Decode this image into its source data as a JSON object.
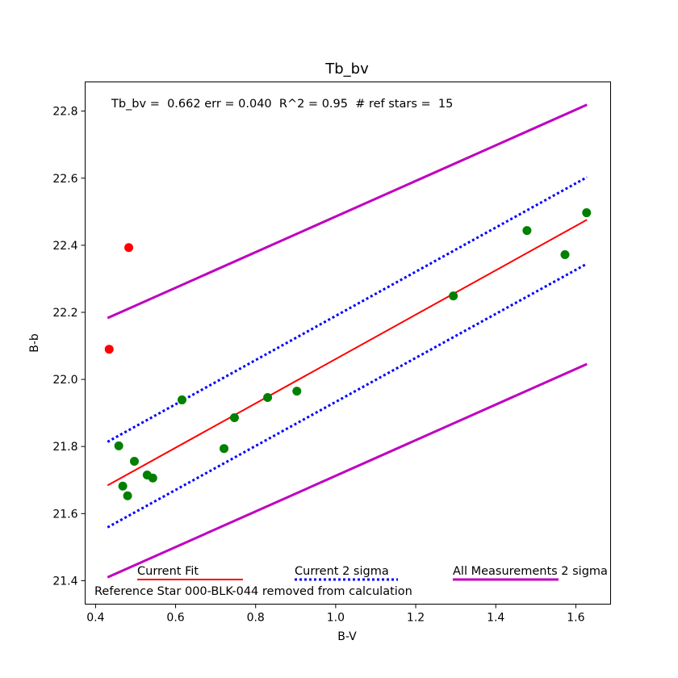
{
  "chart_data": {
    "type": "scatter",
    "title": "Tb_bv",
    "xlabel": "B-V",
    "ylabel": "B-b",
    "xlim": [
      0.374,
      1.687
    ],
    "ylim": [
      21.33,
      22.887
    ],
    "xticks": [
      0.4,
      0.6,
      0.8,
      1.0,
      1.2,
      1.4,
      1.6
    ],
    "xtick_labels": [
      "0.4",
      "0.6",
      "0.8",
      "1.0",
      "1.2",
      "1.4",
      "1.6"
    ],
    "yticks": [
      21.4,
      21.6,
      21.8,
      22.0,
      22.2,
      22.4,
      22.6,
      22.8
    ],
    "ytick_labels": [
      "21.4",
      "21.6",
      "21.8",
      "22.0",
      "22.2",
      "22.4",
      "22.6",
      "22.8"
    ],
    "grid": false,
    "annotation": "Tb_bv =  0.662 err = 0.040  R^2 = 0.95  # ref stars =  15",
    "footnote": "Reference Star 000-BLK-044 removed from calculation",
    "points_used": {
      "color": "#008000",
      "x": [
        0.458,
        0.468,
        0.48,
        0.497,
        0.529,
        0.543,
        0.616,
        0.721,
        0.747,
        0.83,
        0.903,
        1.294,
        1.478,
        1.573,
        1.627
      ],
      "y": [
        21.802,
        21.682,
        21.653,
        21.756,
        21.715,
        21.706,
        21.939,
        21.794,
        21.886,
        21.946,
        21.965,
        22.249,
        22.444,
        22.372,
        22.497
      ]
    },
    "points_removed": {
      "color": "#ff0000",
      "x": [
        0.434,
        0.483
      ],
      "y": [
        22.09,
        22.393
      ]
    },
    "lines": [
      {
        "name": "Current Fit",
        "color": "#ff0000",
        "style": "solid",
        "segments": [
          [
            [
              0.43,
              21.684
            ],
            [
              1.628,
              22.476
            ]
          ]
        ]
      },
      {
        "name": "Current 2 sigma",
        "color": "#0000ff",
        "style": "dotted",
        "segments": [
          [
            [
              0.43,
              21.814
            ],
            [
              1.628,
              22.603
            ]
          ],
          [
            [
              0.43,
              21.559
            ],
            [
              1.628,
              22.345
            ]
          ]
        ]
      },
      {
        "name": "All Measurements 2 sigma",
        "color": "#bf00bf",
        "style": "solid",
        "segments": [
          [
            [
              0.43,
              22.183
            ],
            [
              1.628,
              22.819
            ]
          ],
          [
            [
              0.43,
              21.41
            ],
            [
              1.628,
              22.046
            ]
          ]
        ]
      }
    ],
    "legend": [
      "Current Fit",
      "Current 2 sigma",
      "All Measurements 2 sigma"
    ],
    "legend_placement": "bottom"
  }
}
